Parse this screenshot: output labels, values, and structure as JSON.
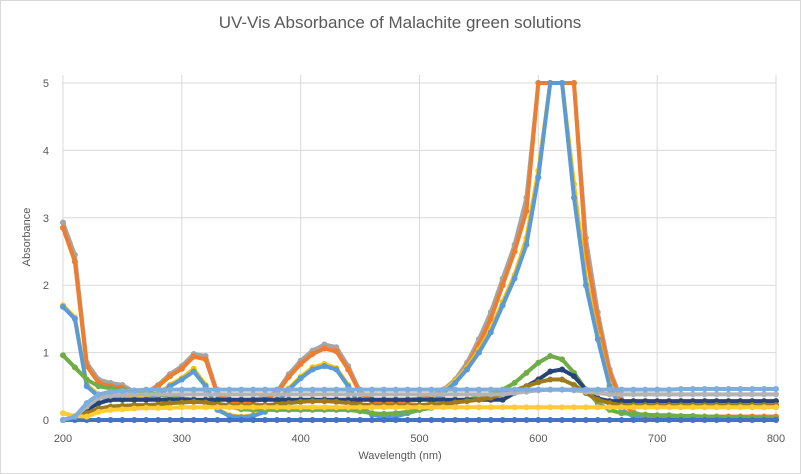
{
  "chart_data": {
    "type": "line",
    "title": "UV-Vis Absorbance of Malachite green solutions",
    "xlabel": "Wavelength (nm)",
    "ylabel": "Absorbance",
    "xlim": [
      200,
      800
    ],
    "ylim": [
      0,
      5.5
    ],
    "xticks": [
      "200",
      "300",
      "400",
      "500",
      "600",
      "700",
      "800"
    ],
    "yticks": [
      "0",
      "1",
      "2",
      "3",
      "4",
      "5"
    ],
    "grid": true,
    "legend": "none",
    "x_start": 200,
    "x_step": 10,
    "series": [
      {
        "color": "#A5A5A5",
        "markers": true,
        "values": [
          2.93,
          2.45,
          0.85,
          0.6,
          0.55,
          0.52,
          0.42,
          0.4,
          0.52,
          0.68,
          0.8,
          0.98,
          0.95,
          0.4,
          0.3,
          0.3,
          0.3,
          0.33,
          0.42,
          0.68,
          0.88,
          1.03,
          1.12,
          1.08,
          0.8,
          0.42,
          0.3,
          0.3,
          0.3,
          0.3,
          0.32,
          0.36,
          0.45,
          0.6,
          0.85,
          1.2,
          1.6,
          2.1,
          2.6,
          3.3,
          5,
          5,
          5,
          5,
          2.7,
          1.6,
          0.75,
          0.3,
          0.12,
          0.05,
          0.05,
          0.05,
          0.05,
          0.05,
          0.05,
          0.05,
          0.05,
          0.05,
          0.05,
          0.05,
          0.05
        ]
      },
      {
        "color": "#ED7D31",
        "markers": true,
        "values": [
          2.85,
          2.35,
          0.8,
          0.55,
          0.5,
          0.48,
          0.4,
          0.38,
          0.5,
          0.65,
          0.76,
          0.94,
          0.9,
          0.38,
          0.28,
          0.28,
          0.28,
          0.31,
          0.4,
          0.64,
          0.83,
          0.98,
          1.06,
          1.02,
          0.75,
          0.4,
          0.28,
          0.28,
          0.28,
          0.28,
          0.3,
          0.34,
          0.42,
          0.56,
          0.8,
          1.12,
          1.5,
          2.0,
          2.5,
          3.1,
          5,
          5,
          5,
          5,
          2.5,
          1.5,
          0.7,
          0.28,
          0.1,
          0.05,
          0.05,
          0.05,
          0.05,
          0.05,
          0.05,
          0.05,
          0.05,
          0.05,
          0.05,
          0.05,
          0.05
        ]
      },
      {
        "color": "#FFC000",
        "markers": true,
        "values": [
          1.7,
          1.52,
          0.52,
          0.37,
          0.32,
          0.32,
          0.32,
          0.32,
          0.37,
          0.52,
          0.62,
          0.76,
          0.52,
          0.16,
          0.07,
          0.05,
          0.07,
          0.13,
          0.27,
          0.47,
          0.64,
          0.78,
          0.83,
          0.77,
          0.52,
          0.21,
          0.09,
          0.05,
          0.06,
          0.11,
          0.16,
          0.27,
          0.42,
          0.58,
          0.78,
          1.04,
          1.34,
          1.75,
          2.15,
          2.7,
          3.7,
          5,
          5,
          3.5,
          2.1,
          1.25,
          0.52,
          0.16,
          0.05,
          0.02,
          0.02,
          0.02,
          0.02,
          0.02,
          0.02,
          0.02,
          0.02,
          0.02,
          0.02,
          0.02,
          0.02
        ]
      },
      {
        "color": "#5B9BD5",
        "markers": true,
        "values": [
          1.68,
          1.5,
          0.5,
          0.35,
          0.3,
          0.3,
          0.3,
          0.3,
          0.35,
          0.5,
          0.6,
          0.72,
          0.5,
          0.15,
          0.06,
          0.04,
          0.06,
          0.12,
          0.25,
          0.45,
          0.62,
          0.75,
          0.8,
          0.75,
          0.5,
          0.2,
          0.08,
          0.04,
          0.05,
          0.1,
          0.15,
          0.25,
          0.4,
          0.55,
          0.75,
          1.0,
          1.3,
          1.7,
          2.1,
          2.6,
          3.6,
          5,
          5,
          3.3,
          2.0,
          1.2,
          0.5,
          0.15,
          0.05,
          0.02,
          0.02,
          0.02,
          0.02,
          0.02,
          0.02,
          0.02,
          0.02,
          0.02,
          0.02,
          0.02,
          0.02
        ]
      },
      {
        "color": "#70AD47",
        "markers": true,
        "values": [
          0.96,
          0.78,
          0.6,
          0.5,
          0.47,
          0.45,
          0.42,
          0.4,
          0.38,
          0.35,
          0.32,
          0.3,
          0.28,
          0.25,
          0.2,
          0.16,
          0.15,
          0.15,
          0.15,
          0.15,
          0.15,
          0.15,
          0.15,
          0.15,
          0.15,
          0.13,
          0.1,
          0.09,
          0.1,
          0.12,
          0.15,
          0.18,
          0.22,
          0.26,
          0.3,
          0.34,
          0.38,
          0.45,
          0.55,
          0.7,
          0.85,
          0.95,
          0.9,
          0.7,
          0.45,
          0.25,
          0.15,
          0.1,
          0.09,
          0.08,
          0.07,
          0.07,
          0.06,
          0.06,
          0.05,
          0.05,
          0.04,
          0.04,
          0.03,
          0.03,
          0.02
        ]
      },
      {
        "color": "#264478",
        "markers": true,
        "values": [
          0,
          0.05,
          0.15,
          0.25,
          0.3,
          0.3,
          0.3,
          0.3,
          0.3,
          0.3,
          0.3,
          0.3,
          0.3,
          0.3,
          0.3,
          0.3,
          0.3,
          0.3,
          0.3,
          0.3,
          0.3,
          0.3,
          0.3,
          0.3,
          0.3,
          0.3,
          0.3,
          0.3,
          0.3,
          0.3,
          0.3,
          0.3,
          0.3,
          0.3,
          0.3,
          0.3,
          0.3,
          0.3,
          0.4,
          0.5,
          0.6,
          0.72,
          0.75,
          0.65,
          0.45,
          0.32,
          0.28,
          0.28,
          0.28,
          0.28,
          0.28,
          0.28,
          0.28,
          0.28,
          0.28,
          0.28,
          0.28,
          0.28,
          0.28,
          0.28,
          0.28
        ]
      },
      {
        "color": "#9E7A1E",
        "markers": true,
        "values": [
          0,
          0.03,
          0.1,
          0.17,
          0.2,
          0.21,
          0.22,
          0.22,
          0.23,
          0.25,
          0.26,
          0.27,
          0.26,
          0.23,
          0.22,
          0.22,
          0.22,
          0.22,
          0.23,
          0.25,
          0.27,
          0.28,
          0.28,
          0.27,
          0.25,
          0.23,
          0.22,
          0.22,
          0.22,
          0.22,
          0.22,
          0.23,
          0.24,
          0.26,
          0.28,
          0.3,
          0.33,
          0.38,
          0.44,
          0.5,
          0.56,
          0.6,
          0.6,
          0.52,
          0.4,
          0.3,
          0.25,
          0.22,
          0.22,
          0.22,
          0.22,
          0.22,
          0.22,
          0.22,
          0.22,
          0.22,
          0.22,
          0.22,
          0.22,
          0.22,
          0.22
        ]
      },
      {
        "color": "#4472C4",
        "markers": true,
        "values": [
          0,
          0,
          0,
          0,
          0,
          0,
          0,
          0,
          0,
          0,
          0,
          0,
          0,
          0,
          0,
          0,
          0,
          0,
          0,
          0,
          0,
          0,
          0,
          0,
          0,
          0,
          0,
          0,
          0,
          0,
          0,
          0,
          0,
          0,
          0,
          0,
          0,
          0,
          0,
          0,
          0,
          0,
          0,
          0,
          0,
          0,
          0,
          0,
          0,
          0,
          0,
          0,
          0,
          0,
          0,
          0,
          0,
          0,
          0,
          0,
          0
        ]
      },
      {
        "color": "#FFCD33",
        "markers": true,
        "values": [
          0.1,
          0.06,
          0.05,
          0.12,
          0.15,
          0.16,
          0.17,
          0.18,
          0.18,
          0.18,
          0.19,
          0.19,
          0.19,
          0.19,
          0.19,
          0.19,
          0.19,
          0.19,
          0.19,
          0.19,
          0.19,
          0.19,
          0.19,
          0.19,
          0.19,
          0.19,
          0.19,
          0.19,
          0.19,
          0.19,
          0.19,
          0.19,
          0.19,
          0.19,
          0.19,
          0.19,
          0.19,
          0.19,
          0.19,
          0.19,
          0.19,
          0.19,
          0.19,
          0.19,
          0.19,
          0.19,
          0.19,
          0.19,
          0.19,
          0.19,
          0.19,
          0.19,
          0.19,
          0.19,
          0.19,
          0.19,
          0.19,
          0.19,
          0.19,
          0.19,
          0.19
        ]
      },
      {
        "color": "#B4B4B4",
        "markers": true,
        "values": [
          0,
          0.05,
          0.2,
          0.33,
          0.36,
          0.37,
          0.38,
          0.38,
          0.38,
          0.38,
          0.38,
          0.38,
          0.38,
          0.38,
          0.38,
          0.38,
          0.38,
          0.38,
          0.38,
          0.38,
          0.38,
          0.38,
          0.38,
          0.38,
          0.38,
          0.38,
          0.38,
          0.38,
          0.38,
          0.38,
          0.38,
          0.38,
          0.38,
          0.38,
          0.38,
          0.38,
          0.38,
          0.38,
          0.4,
          0.42,
          0.44,
          0.45,
          0.45,
          0.44,
          0.42,
          0.4,
          0.38,
          0.38,
          0.38,
          0.38,
          0.38,
          0.38,
          0.38,
          0.38,
          0.38,
          0.38,
          0.38,
          0.38,
          0.38,
          0.38,
          0.38
        ]
      },
      {
        "color": "#7FAEDC",
        "markers": true,
        "values": [
          0,
          0.05,
          0.25,
          0.38,
          0.42,
          0.43,
          0.44,
          0.45,
          0.45,
          0.45,
          0.45,
          0.45,
          0.45,
          0.45,
          0.45,
          0.45,
          0.45,
          0.45,
          0.45,
          0.45,
          0.45,
          0.45,
          0.45,
          0.45,
          0.45,
          0.45,
          0.45,
          0.45,
          0.45,
          0.45,
          0.45,
          0.45,
          0.45,
          0.45,
          0.45,
          0.45,
          0.45,
          0.45,
          0.45,
          0.45,
          0.45,
          0.45,
          0.45,
          0.45,
          0.45,
          0.45,
          0.45,
          0.45,
          0.45,
          0.45,
          0.45,
          0.45,
          0.46,
          0.46,
          0.46,
          0.46,
          0.46,
          0.46,
          0.46,
          0.46,
          0.46
        ]
      }
    ]
  }
}
